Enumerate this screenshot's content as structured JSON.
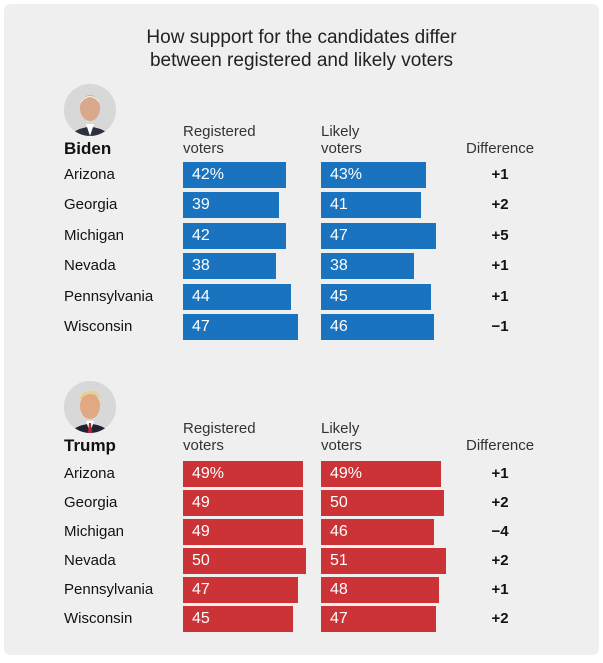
{
  "title_lines": [
    "How support for the candidates differ",
    "between registered and likely voters"
  ],
  "column_headers": {
    "registered": [
      "Registered",
      "voters"
    ],
    "likely": [
      "Likely",
      "voters"
    ],
    "difference": "Difference"
  },
  "colors": {
    "biden": "#1a73bf",
    "trump": "#cc3336",
    "background": "#efefef"
  },
  "avatars": {
    "biden": "biden-portrait-icon",
    "trump": "trump-portrait-icon"
  },
  "chart_data": [
    {
      "type": "bar",
      "candidate": "Biden",
      "categories": [
        "Arizona",
        "Georgia",
        "Michigan",
        "Nevada",
        "Pennsylvania",
        "Wisconsin"
      ],
      "series": [
        {
          "name": "Registered voters",
          "values": [
            42,
            39,
            42,
            38,
            44,
            47
          ],
          "labels": [
            "42%",
            "39",
            "42",
            "38",
            "44",
            "47"
          ]
        },
        {
          "name": "Likely voters",
          "values": [
            43,
            41,
            47,
            38,
            45,
            46
          ],
          "labels": [
            "43%",
            "41",
            "47",
            "38",
            "45",
            "46"
          ]
        }
      ],
      "difference": [
        "+1",
        "+2",
        "+5",
        "+1",
        "+1",
        "−1"
      ]
    },
    {
      "type": "bar",
      "candidate": "Trump",
      "categories": [
        "Arizona",
        "Georgia",
        "Michigan",
        "Nevada",
        "Pennsylvania",
        "Wisconsin"
      ],
      "series": [
        {
          "name": "Registered voters",
          "values": [
            49,
            49,
            49,
            50,
            47,
            45
          ],
          "labels": [
            "49%",
            "49",
            "49",
            "50",
            "47",
            "45"
          ]
        },
        {
          "name": "Likely voters",
          "values": [
            49,
            50,
            46,
            51,
            48,
            47
          ],
          "labels": [
            "49%",
            "50",
            "46",
            "51",
            "48",
            "47"
          ]
        }
      ],
      "difference": [
        "+1",
        "+2",
        "−4",
        "+2",
        "+1",
        "+2"
      ]
    }
  ]
}
